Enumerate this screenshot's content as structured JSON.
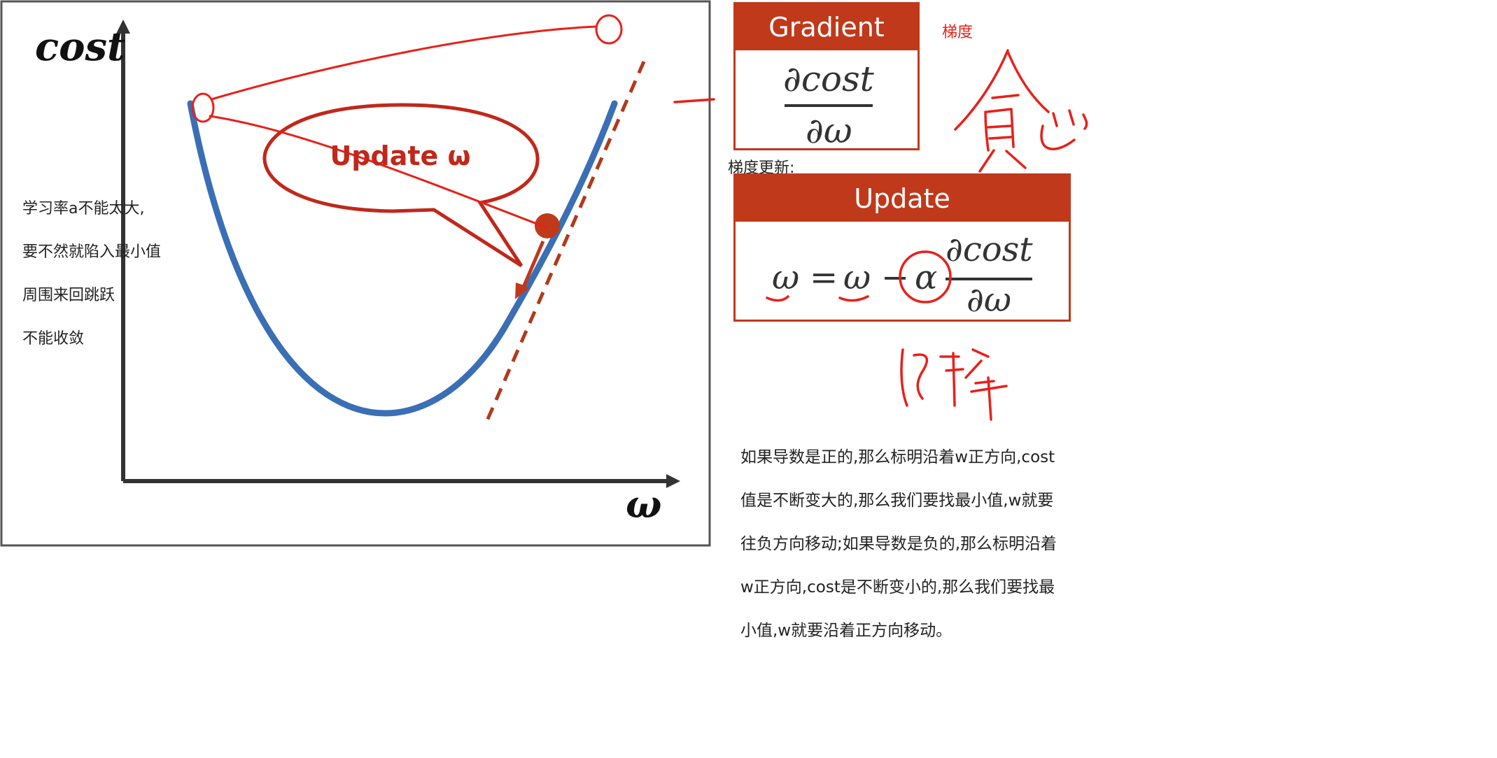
{
  "axes": {
    "y_label": "cost",
    "x_label": "ω"
  },
  "speech_bubble": {
    "text": "Update ω"
  },
  "left_note": {
    "lines": [
      "学习率a不能太大,",
      "要不然就陷入最小值",
      "周围来回跳跃",
      "不能收敛"
    ]
  },
  "gradient_box": {
    "title": "Gradient",
    "numerator": "∂cost",
    "denominator": "∂ω",
    "side_label": "梯度"
  },
  "update_section_label": "梯度更新:",
  "update_box": {
    "title": "Update",
    "lhs": "ω",
    "equals": "=",
    "w": "ω",
    "minus": "−",
    "alpha": "α",
    "numerator": "∂cost",
    "denominator": "∂ω"
  },
  "bottom_note": {
    "lines": [
      "如果导数是正的,那么标明沿着w正方向,cost",
      "值是不断变大的,那么我们要找最小值,w就要",
      "往负方向移动;如果导数是负的,那么标明沿着",
      "w正方向,cost是不断变小的,那么我们要找最",
      "小值,w就要沿着正方向移动。"
    ]
  },
  "colors": {
    "accent_red": "#c0391b",
    "annotation_red": "#e8201a",
    "curve_blue": "#3a6fb5",
    "axis_dark": "#333333"
  }
}
